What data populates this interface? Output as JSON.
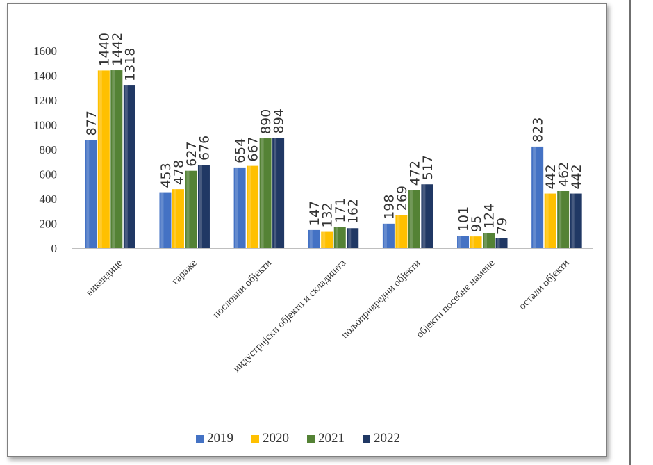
{
  "chart_data": {
    "type": "bar",
    "categories": [
      "викендице",
      "гараже",
      "пословни објекти",
      "индустријски објекти и складишта",
      "пољопривредни објекти",
      "објекти посебне намене",
      "остали објекти"
    ],
    "series": [
      {
        "name": "2019",
        "color": "#4472c4",
        "values": [
          877,
          453,
          654,
          147,
          198,
          101,
          823
        ]
      },
      {
        "name": "2020",
        "color": "#ffc000",
        "values": [
          1440,
          478,
          667,
          132,
          269,
          95,
          442
        ]
      },
      {
        "name": "2021",
        "color": "#548235",
        "values": [
          1442,
          627,
          890,
          171,
          472,
          124,
          462
        ]
      },
      {
        "name": "2022",
        "color": "#203864",
        "values": [
          1318,
          676,
          894,
          162,
          517,
          79,
          442
        ]
      }
    ],
    "yticks": [
      0,
      200,
      400,
      600,
      800,
      1000,
      1200,
      1400,
      1600
    ],
    "ylim": [
      0,
      1600
    ],
    "title": "",
    "xlabel": "",
    "ylabel": "",
    "legend_position": "bottom"
  }
}
